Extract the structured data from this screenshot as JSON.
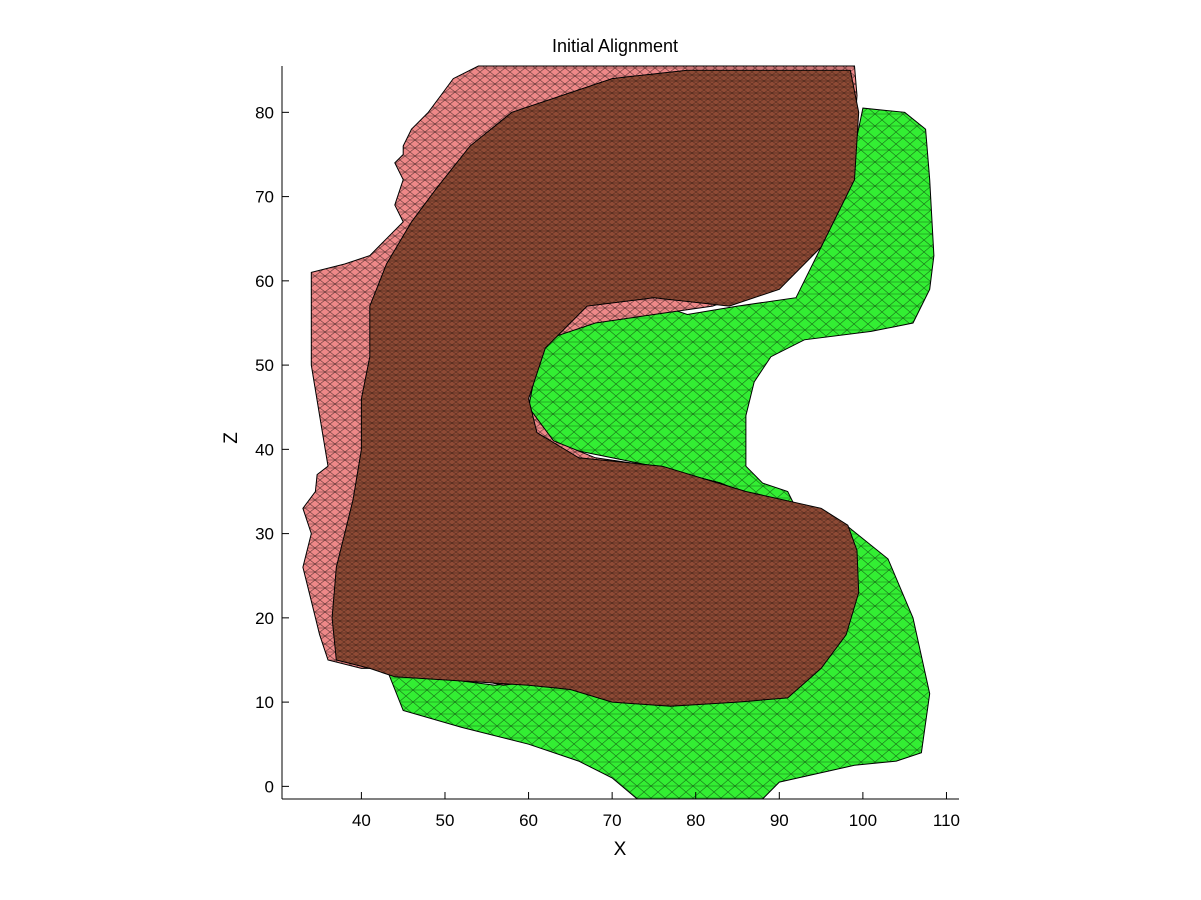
{
  "chart_data": {
    "type": "surface",
    "title": "Initial Alignment",
    "xlabel": "X",
    "ylabel": "Z",
    "xlim": [
      30.5,
      111.5
    ],
    "ylim": [
      -1.5,
      85.5
    ],
    "xticks": [
      40,
      50,
      60,
      70,
      80,
      90,
      100,
      110
    ],
    "yticks": [
      0,
      10,
      20,
      30,
      40,
      50,
      60,
      70,
      80
    ],
    "grid": false,
    "legend": "none",
    "series": [
      {
        "color": "#33ee33",
        "mesh": "wireframe",
        "outline": [
          [
            73,
            -1.5
          ],
          [
            88,
            -1.5
          ],
          [
            90,
            0.5
          ],
          [
            99,
            2.5
          ],
          [
            104,
            3
          ],
          [
            107,
            4
          ],
          [
            108,
            11
          ],
          [
            106,
            20
          ],
          [
            103,
            27
          ],
          [
            98,
            31
          ],
          [
            93,
            31
          ],
          [
            91,
            35
          ],
          [
            88,
            36
          ],
          [
            86,
            38
          ],
          [
            86,
            44
          ],
          [
            87,
            48
          ],
          [
            89,
            51
          ],
          [
            93,
            53
          ],
          [
            101,
            54
          ],
          [
            106,
            55
          ],
          [
            108,
            59
          ],
          [
            108.5,
            63
          ],
          [
            108,
            72
          ],
          [
            107.5,
            78
          ],
          [
            105,
            80
          ],
          [
            100,
            80.5
          ],
          [
            98,
            71
          ],
          [
            95,
            64
          ],
          [
            92,
            58
          ],
          [
            85,
            57
          ],
          [
            79,
            56
          ],
          [
            73,
            58
          ],
          [
            67,
            58
          ],
          [
            63,
            55
          ],
          [
            61,
            50
          ],
          [
            60,
            45
          ],
          [
            62,
            41
          ],
          [
            65,
            40
          ],
          [
            70,
            39
          ],
          [
            75,
            38
          ],
          [
            83,
            36
          ],
          [
            84,
            33
          ],
          [
            82,
            30
          ],
          [
            77,
            24
          ],
          [
            70,
            18
          ],
          [
            64,
            13
          ],
          [
            56,
            12
          ],
          [
            48,
            13
          ],
          [
            43,
            14
          ],
          [
            45,
            9
          ],
          [
            52,
            7
          ],
          [
            60,
            5
          ],
          [
            66,
            3
          ],
          [
            70,
            1
          ]
        ],
        "hole": [
          [
            55,
            44
          ],
          [
            58,
            45
          ],
          [
            59.5,
            46.3
          ],
          [
            58,
            47.4
          ],
          [
            55,
            47.6
          ],
          [
            53,
            46.8
          ],
          [
            52,
            46
          ]
        ]
      },
      {
        "color": "#ee8888",
        "mesh": "wireframe",
        "outline": [
          [
            34.5,
            35
          ],
          [
            34.7,
            37
          ],
          [
            36,
            38
          ],
          [
            35,
            44
          ],
          [
            34,
            50
          ],
          [
            34,
            58
          ],
          [
            34,
            61
          ],
          [
            38,
            62
          ],
          [
            41,
            63
          ],
          [
            43,
            65
          ],
          [
            45,
            67
          ],
          [
            44,
            69
          ],
          [
            45,
            72
          ],
          [
            44,
            74
          ],
          [
            45,
            75
          ],
          [
            45,
            76
          ],
          [
            46,
            78
          ],
          [
            48,
            80
          ],
          [
            49.5,
            82
          ],
          [
            51,
            84
          ],
          [
            54,
            85.5
          ],
          [
            60,
            85.5
          ],
          [
            68,
            85.5
          ],
          [
            80,
            85.5
          ],
          [
            92,
            85.5
          ],
          [
            99,
            85.5
          ],
          [
            99.3,
            82
          ],
          [
            99,
            78
          ],
          [
            97,
            73
          ],
          [
            95,
            67
          ],
          [
            92,
            62
          ],
          [
            88,
            59
          ],
          [
            82,
            57
          ],
          [
            75,
            56
          ],
          [
            68,
            55
          ],
          [
            62,
            53
          ],
          [
            60,
            49
          ],
          [
            60,
            45
          ],
          [
            63,
            41
          ],
          [
            68,
            39
          ],
          [
            75,
            38
          ],
          [
            83,
            36
          ],
          [
            85.5,
            35
          ],
          [
            83,
            34
          ],
          [
            81,
            31
          ],
          [
            76,
            25
          ],
          [
            70,
            18
          ],
          [
            64,
            13
          ],
          [
            57,
            12
          ],
          [
            52,
            13
          ],
          [
            47,
            14
          ],
          [
            40,
            14
          ],
          [
            36,
            15
          ],
          [
            35,
            18
          ],
          [
            34,
            22
          ],
          [
            33,
            26
          ],
          [
            34,
            30
          ],
          [
            33,
            33
          ]
        ]
      },
      {
        "color": "#8e4a35",
        "mesh": "wireframe",
        "outline": [
          [
            37,
            15
          ],
          [
            41,
            14
          ],
          [
            44,
            13
          ],
          [
            52,
            12.5
          ],
          [
            60,
            12
          ],
          [
            65,
            11.5
          ],
          [
            70,
            10
          ],
          [
            77,
            9.5
          ],
          [
            85,
            10
          ],
          [
            91,
            10.5
          ],
          [
            95,
            14
          ],
          [
            98,
            18
          ],
          [
            99.5,
            23
          ],
          [
            99.3,
            28
          ],
          [
            98.2,
            31
          ],
          [
            95,
            33
          ],
          [
            86,
            35
          ],
          [
            76,
            38
          ],
          [
            66,
            39
          ],
          [
            61,
            42
          ],
          [
            60,
            46
          ],
          [
            62,
            52
          ],
          [
            67,
            57
          ],
          [
            75,
            58
          ],
          [
            84,
            57
          ],
          [
            90,
            59
          ],
          [
            95,
            64
          ],
          [
            99,
            72
          ],
          [
            99.5,
            80
          ],
          [
            98.5,
            85
          ],
          [
            90,
            85
          ],
          [
            79,
            85
          ],
          [
            70,
            84
          ],
          [
            64,
            82
          ],
          [
            58,
            80
          ],
          [
            53,
            76
          ],
          [
            49,
            71
          ],
          [
            46,
            67
          ],
          [
            43,
            62
          ],
          [
            41,
            57
          ],
          [
            41,
            51
          ],
          [
            40,
            46
          ],
          [
            40,
            40
          ],
          [
            39,
            34
          ],
          [
            38,
            30
          ],
          [
            37,
            26
          ],
          [
            36.5,
            20
          ]
        ]
      }
    ]
  }
}
